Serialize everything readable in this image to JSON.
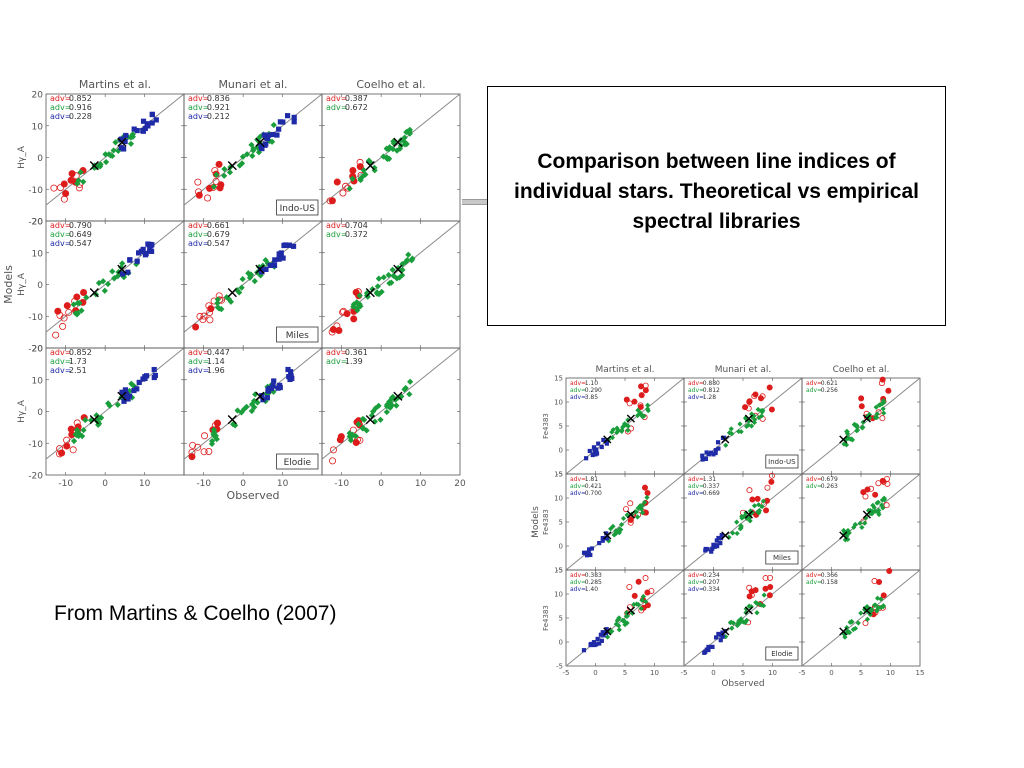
{
  "slide": {
    "caption": "Comparison between line indices of individual stars. Theoretical vs empirical spectral libraries",
    "source": "From Martins & Coelho (2007)"
  },
  "colors": {
    "red": "#dd1c1c",
    "green": "#1a9e3c",
    "blue": "#1f2aa6",
    "black": "#000000",
    "frame": "#555555",
    "diagonal": "#8a8a8a"
  },
  "chart_data": [
    {
      "type": "scatter",
      "index_name": "Hγ_A",
      "row_ylabels": [
        "Hγ_A",
        "Hγ_A",
        "Hγ_A"
      ],
      "ylabel": "Models",
      "xlabel": "Observed",
      "columns": [
        "Martins et al.",
        "Munari et al.",
        "Coelho et al."
      ],
      "rows": [
        "Indo-US",
        "Miles",
        "Elodie"
      ],
      "xlim": [
        -15,
        20
      ],
      "ylim": [
        -20,
        20
      ],
      "xticks": [
        -10,
        0,
        10,
        20
      ],
      "yticks": [
        -20,
        -10,
        0,
        10,
        20
      ],
      "adev_label": "adv=",
      "adev": [
        [
          [
            0.852,
            0.916,
            0.228
          ],
          [
            0.836,
            0.921,
            0.212
          ],
          [
            0.387,
            0.672
          ]
        ],
        [
          [
            0.79,
            0.649,
            0.547
          ],
          [
            0.661,
            0.679,
            0.547
          ],
          [
            0.704,
            0.372
          ]
        ],
        [
          [
            0.852,
            1.73,
            2.51
          ],
          [
            0.447,
            1.14,
            1.96
          ],
          [
            0.361,
            1.39
          ]
        ]
      ],
      "adev_text": [
        [
          [
            "0.852",
            "0.916",
            "0.228"
          ],
          [
            "0.836",
            "0.921",
            "0.212"
          ],
          [
            "0.387",
            "0.672"
          ]
        ],
        [
          [
            "0.790",
            "0.649",
            "0.547"
          ],
          [
            "0.661",
            "0.679",
            "0.547"
          ],
          [
            "0.704",
            "0.372"
          ]
        ],
        [
          [
            "0.852",
            "1.73",
            "2.51"
          ],
          [
            "0.447",
            "1.14",
            "1.96"
          ],
          [
            "0.361",
            "1.39"
          ]
        ]
      ],
      "series": [
        {
          "color": "red",
          "x_range": [
            -13,
            -5
          ],
          "y_offset_range": [
            -4,
            4
          ],
          "n": 12
        },
        {
          "color": "green",
          "x_range": [
            -8,
            8
          ],
          "y_offset_range": [
            -2.5,
            2.5
          ],
          "n": 26
        },
        {
          "color": "blue",
          "x_range": [
            4,
            13
          ],
          "y_offset_range": [
            -2,
            2
          ],
          "n": 18
        }
      ],
      "coelho_extra_points": [
        [
          13,
          -14
        ]
      ]
    },
    {
      "type": "scatter",
      "index_name": "Fe4383",
      "row_ylabels": [
        "Fe4383",
        "Fe4383",
        "Fe4383"
      ],
      "ylabel": "Models",
      "xlabel": "Observed",
      "columns": [
        "Martins et al.",
        "Munari et al.",
        "Coelho et al."
      ],
      "rows": [
        "Indo-US",
        "Miles",
        "Elodie"
      ],
      "xlim": [
        -5,
        15
      ],
      "ylim": [
        -5,
        15
      ],
      "xticks": [
        -5,
        0,
        5,
        10,
        15
      ],
      "yticks": [
        -5,
        0,
        5,
        10,
        15
      ],
      "adev_label": "adv=",
      "adev": [
        [
          [
            1.1,
            0.29,
            3.85
          ],
          [
            0.88,
            0.812,
            1.28
          ],
          [
            0.621,
            0.256
          ]
        ],
        [
          [
            1.81,
            0.421,
            0.7
          ],
          [
            1.31,
            0.337,
            0.669
          ],
          [
            0.679,
            0.263
          ]
        ],
        [
          [
            0.383,
            0.285,
            1.4
          ],
          [
            0.234,
            0.207,
            0.334
          ],
          [
            0.366,
            0.158
          ]
        ]
      ],
      "adev_text": [
        [
          [
            "1.10",
            "0.290",
            "3.85"
          ],
          [
            "0.880",
            "0.812",
            "1.28"
          ],
          [
            "0.621",
            "0.256"
          ]
        ],
        [
          [
            "1.81",
            "0.421",
            "0.700"
          ],
          [
            "1.31",
            "0.337",
            "0.669"
          ],
          [
            "0.679",
            "0.263"
          ]
        ],
        [
          [
            "0.383",
            "0.285",
            "1.40"
          ],
          [
            "0.234",
            "0.207",
            "0.334"
          ],
          [
            "0.366",
            "0.158"
          ]
        ]
      ],
      "series": [
        {
          "color": "red",
          "x_range": [
            5,
            10
          ],
          "y_offset_range": [
            -2,
            6
          ],
          "n": 12
        },
        {
          "color": "green",
          "x_range": [
            2,
            9
          ],
          "y_offset_range": [
            -1.5,
            1.5
          ],
          "n": 26
        },
        {
          "color": "blue",
          "x_range": [
            -2,
            2
          ],
          "y_offset_range": [
            -1,
            1
          ],
          "n": 14
        }
      ]
    }
  ]
}
